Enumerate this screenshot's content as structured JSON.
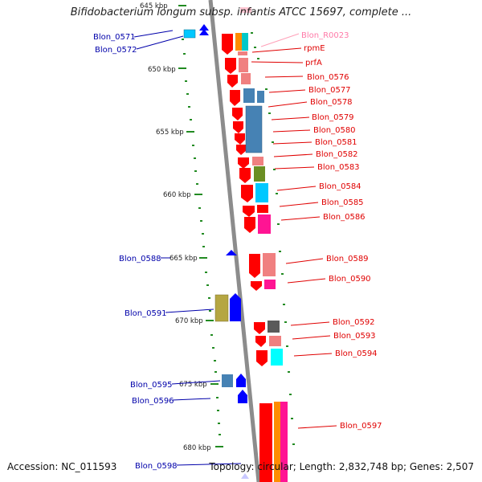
{
  "title": "Bifidobacterium longum subsp. infantis ATCC 15697, complete ...",
  "footer": {
    "accession": "Accession: NC_011593",
    "summary": "Topology: circular; Length: 2,832,748 bp; Genes: 2,507"
  },
  "ticks": [
    "645 kbp",
    "650 kbp",
    "655 kbp",
    "660 kbp",
    "665 kbp",
    "670 kbp",
    "675 kbp",
    "680 kbp"
  ],
  "right_labels": [
    "Blon_R0023",
    "rpmE",
    "prfA",
    "Blon_0576",
    "Blon_0577",
    "Blon_0578",
    "Blon_0579",
    "Blon_0580",
    "Blon_0581",
    "Blon_0582",
    "Blon_0583",
    "Blon_0584",
    "Blon_0585",
    "Blon_0586",
    "Blon_0589",
    "Blon_0590",
    "Blon_0592",
    "Blon_0593",
    "Blon_0594",
    "Blon_0597"
  ],
  "left_labels": [
    "Blon_0571",
    "Blon_0572",
    "Blon_0588",
    "Blon_0591",
    "Blon_0595",
    "Blon_0596",
    "Blon_0598"
  ],
  "colors": {
    "red": "#ff0000",
    "salmon": "#f08080",
    "steel": "#4682b4",
    "cyan": "#00c8ff",
    "olive": "#6b8e23",
    "pink": "#ff1493",
    "orange": "#ff8c00",
    "blue": "#0000ff",
    "khaki": "#b5a642",
    "backbone": "#8c8c8c",
    "tick": "#228b22"
  }
}
